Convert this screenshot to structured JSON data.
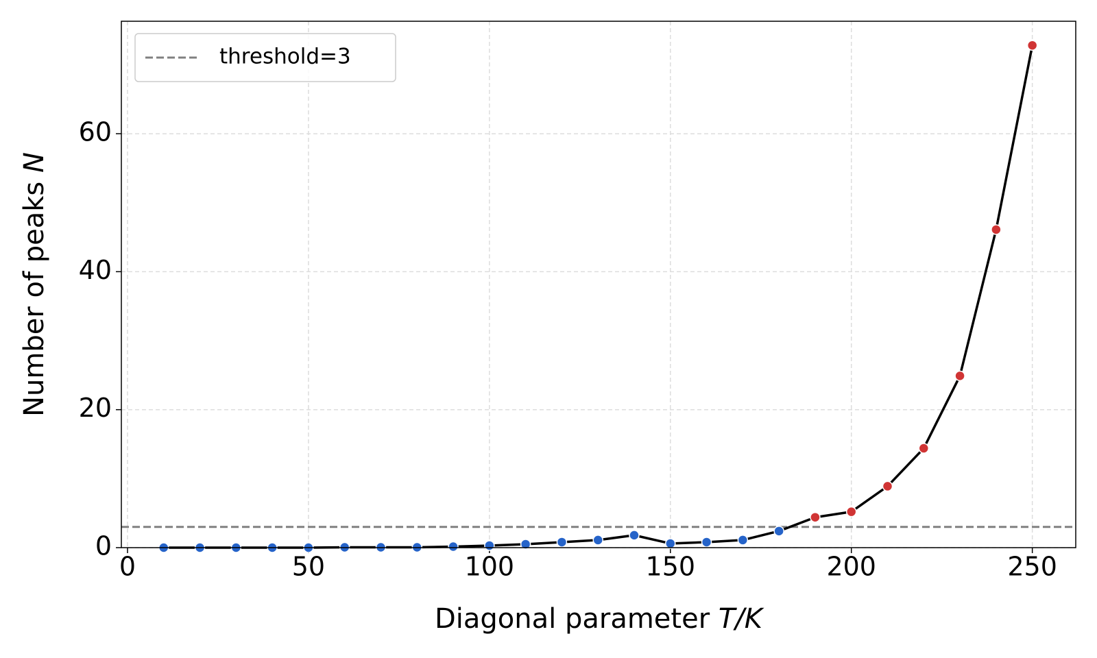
{
  "chart_data": {
    "type": "line",
    "xlabel": [
      "Diagonal parameter",
      "T/K"
    ],
    "ylabel": [
      "Number of peaks",
      "N"
    ],
    "x": [
      10,
      20,
      30,
      40,
      50,
      60,
      70,
      80,
      90,
      100,
      110,
      120,
      130,
      140,
      150,
      160,
      170,
      180,
      190,
      200,
      210,
      220,
      230,
      240,
      250
    ],
    "series": [
      {
        "color": "#000000",
        "values": [
          0,
          0,
          0,
          0,
          0,
          0.05,
          0.05,
          0.05,
          0.15,
          0.3,
          0.5,
          0.8,
          1.1,
          1.8,
          0.6,
          0.8,
          1.1,
          2.4,
          4.4,
          5.2,
          8.9,
          14.4,
          24.9,
          46.1,
          72.8
        ],
        "marker_color_below": "#2563c9",
        "marker_color_above": "#d03434"
      }
    ],
    "threshold": {
      "value": 3,
      "label": "threshold=3",
      "color": "#808080"
    },
    "xlim": [
      -1.7,
      262
    ],
    "ylim": [
      0,
      76.3
    ],
    "xticks": [
      0,
      50,
      100,
      150,
      200,
      250
    ],
    "yticks": [
      0,
      20,
      40,
      60
    ],
    "grid": true,
    "legend": "upper left"
  }
}
